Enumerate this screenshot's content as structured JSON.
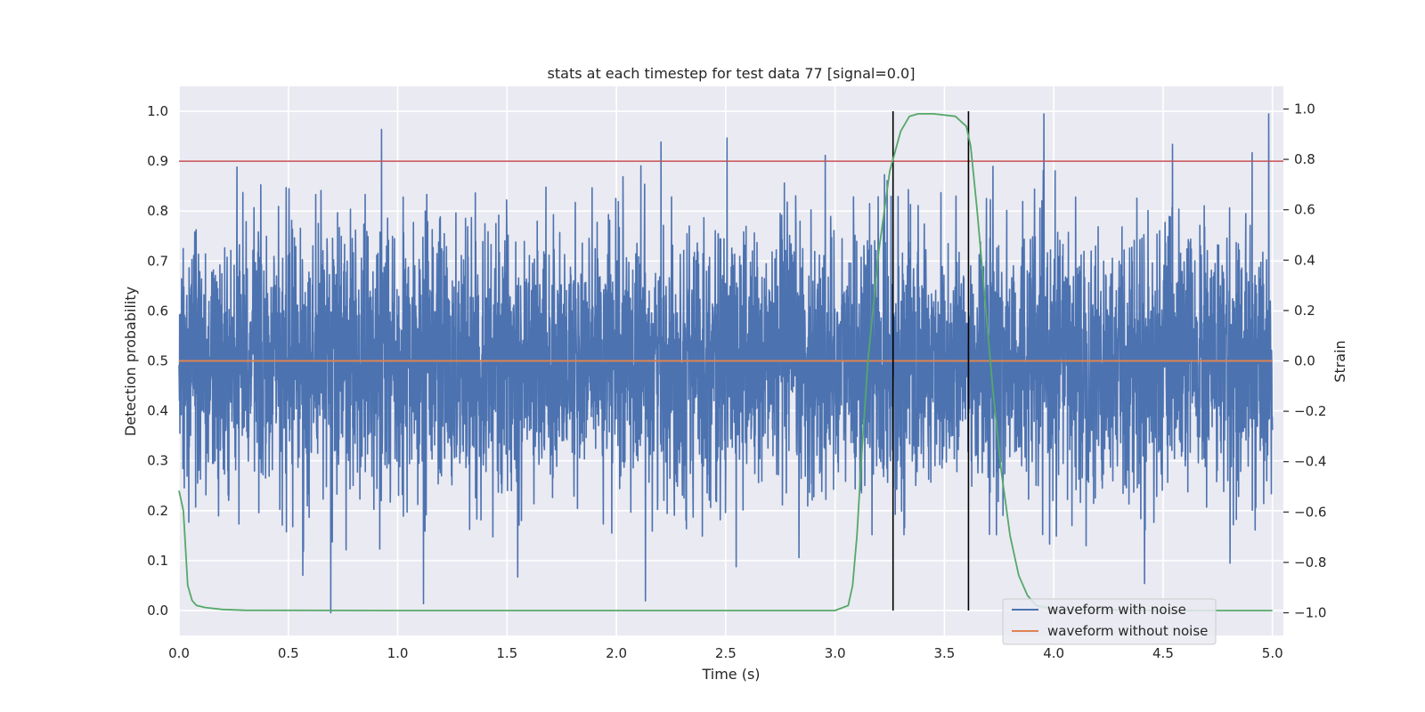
{
  "chart_data": {
    "type": "line",
    "title": "stats at each timestep for test data 77 [signal=0.0]",
    "xlabel": "Time (s)",
    "ylabel_left": "Detection probability",
    "ylabel_right": "Strain",
    "xlim": [
      0.0,
      5.05
    ],
    "ylim_left": [
      -0.05,
      1.05
    ],
    "ylim_right": [
      -1.09,
      1.09
    ],
    "grid": true,
    "legend_position": "lower-right",
    "x_ticks": [
      "0.0",
      "0.5",
      "1.0",
      "1.5",
      "2.0",
      "2.5",
      "3.0",
      "3.5",
      "4.0",
      "4.5",
      "5.0"
    ],
    "y_left_ticks": [
      "0.0",
      "0.1",
      "0.2",
      "0.3",
      "0.4",
      "0.5",
      "0.6",
      "0.7",
      "0.8",
      "0.9",
      "1.0"
    ],
    "y_right_ticks": [
      "−1.0",
      "−0.8",
      "−0.6",
      "−0.4",
      "−0.2",
      "0.0",
      "0.2",
      "0.4",
      "0.6",
      "0.8",
      "1.0"
    ],
    "series": [
      {
        "name": "waveform with noise",
        "axis": "right",
        "color": "#4c72b0",
        "sample_rate_hz": 1000,
        "x_range": [
          0.0,
          5.0
        ],
        "amplitude_range": [
          -1.0,
          0.98
        ],
        "description": "noisy strain centred on 0.0"
      },
      {
        "name": "waveform without noise",
        "axis": "right",
        "color": "#dd8452",
        "x": [
          0.0,
          5.0
        ],
        "y": [
          0.0,
          0.0
        ]
      },
      {
        "name": "",
        "axis": "left",
        "color": "#55a868",
        "x": [
          0.0,
          0.02,
          0.04,
          0.06,
          0.08,
          0.12,
          0.2,
          0.3,
          1.0,
          2.0,
          3.0,
          3.06,
          3.08,
          3.1,
          3.12,
          3.15,
          3.2,
          3.25,
          3.3,
          3.34,
          3.38,
          3.45,
          3.55,
          3.6,
          3.62,
          3.65,
          3.68,
          3.72,
          3.76,
          3.8,
          3.84,
          3.88,
          3.92,
          4.0,
          4.5,
          5.0
        ],
        "y": [
          0.24,
          0.2,
          0.05,
          0.02,
          0.01,
          0.006,
          0.002,
          0.0005,
          0.0,
          0.0,
          0.0,
          0.01,
          0.05,
          0.15,
          0.3,
          0.5,
          0.72,
          0.88,
          0.96,
          0.99,
          0.995,
          0.995,
          0.99,
          0.97,
          0.93,
          0.8,
          0.65,
          0.45,
          0.28,
          0.15,
          0.07,
          0.03,
          0.01,
          0.002,
          0.0,
          0.0
        ]
      }
    ],
    "reference_lines": [
      {
        "orientation": "horizontal",
        "axis": "left",
        "value": 0.9,
        "color": "#c44e52"
      },
      {
        "orientation": "vertical",
        "value": 3.265,
        "color": "#000000"
      },
      {
        "orientation": "vertical",
        "value": 3.61,
        "color": "#000000"
      }
    ]
  }
}
